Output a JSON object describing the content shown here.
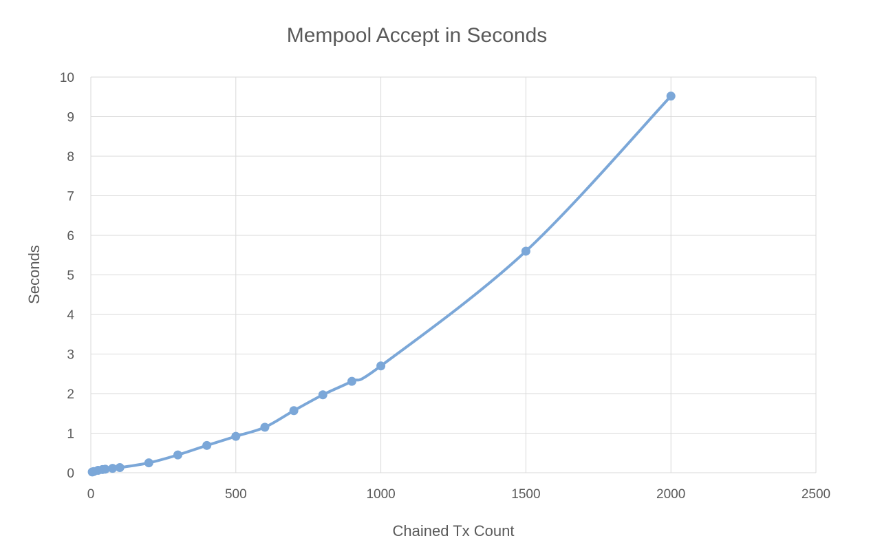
{
  "chart_data": {
    "type": "scatter",
    "title": "Mempool Accept in Seconds",
    "xlabel": "Chained Tx Count",
    "ylabel": "Seconds",
    "xlim": [
      0,
      2500
    ],
    "ylim": [
      0,
      10
    ],
    "x_ticks": [
      "0",
      "500",
      "1000",
      "1500",
      "2000",
      "2500"
    ],
    "y_ticks": [
      "0",
      "1",
      "2",
      "3",
      "4",
      "5",
      "6",
      "7",
      "8",
      "9",
      "10"
    ],
    "grid": true,
    "legend": "none",
    "smoothed_line": true,
    "series": [
      {
        "color": "#7ba7d8",
        "x": [
          5,
          10,
          25,
          40,
          50,
          75,
          100,
          200,
          300,
          400,
          500,
          600,
          700,
          800,
          900,
          1000,
          1500,
          2000
        ],
        "y": [
          0.02,
          0.03,
          0.06,
          0.08,
          0.09,
          0.11,
          0.13,
          0.25,
          0.45,
          0.69,
          0.92,
          1.15,
          1.57,
          1.97,
          2.31,
          2.7,
          5.6,
          9.52
        ]
      }
    ]
  }
}
